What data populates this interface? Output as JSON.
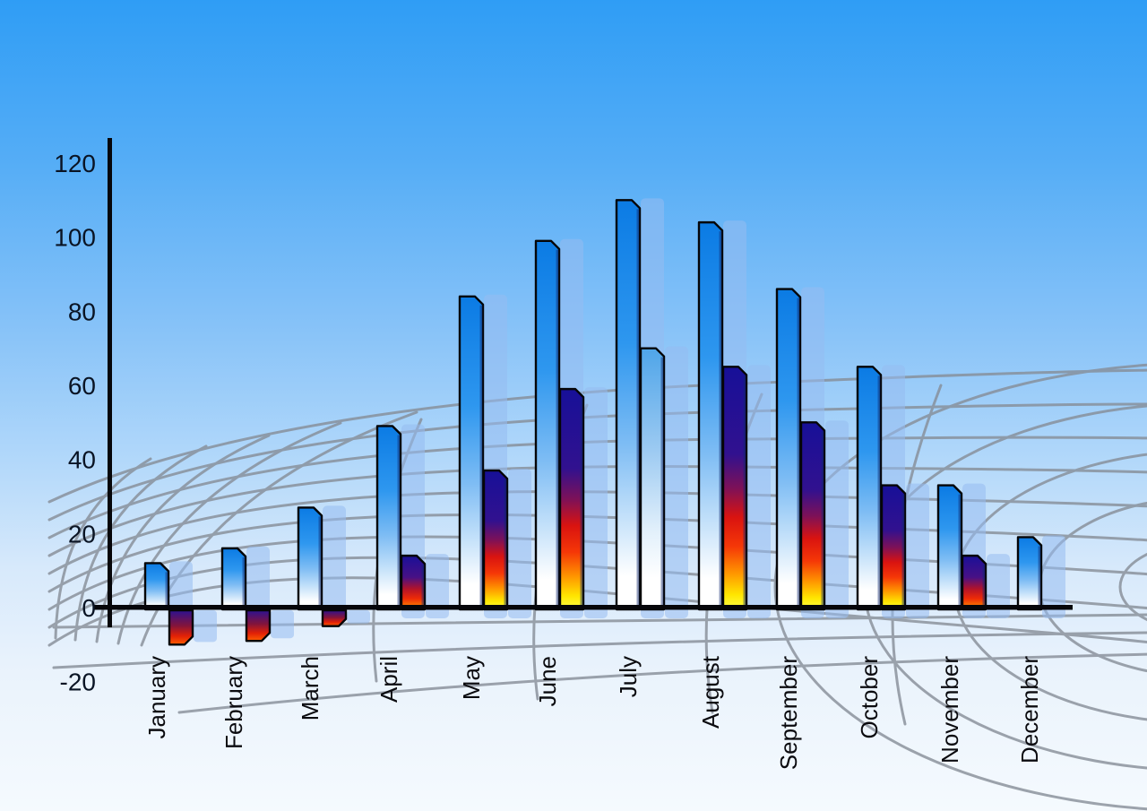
{
  "chart_data": {
    "type": "bar",
    "title": "",
    "xlabel": "",
    "ylabel": "",
    "legend": "none",
    "grid": "decorative-perspective-ground-grid",
    "ylim": [
      -20,
      120
    ],
    "y_ticks": [
      120,
      100,
      80,
      60,
      40,
      20,
      0,
      -20
    ],
    "categories": [
      "January",
      "February",
      "March",
      "April",
      "May",
      "June",
      "July",
      "August",
      "September",
      "October",
      "November",
      "December"
    ],
    "series": [
      {
        "name": "primary-blue-bars",
        "values": [
          12,
          16,
          27,
          49,
          84,
          99,
          110,
          104,
          86,
          65,
          33,
          19
        ],
        "styles": [
          "blue_bar",
          "blue_bar",
          "blue_bar",
          "blue_bar",
          "blue_bar",
          "blue_bar",
          "blue_bar",
          "blue_bar",
          "blue_bar",
          "blue_bar",
          "blue_bar",
          "blue_bar"
        ]
      },
      {
        "name": "secondary-warm-bars",
        "values": [
          -10,
          -9,
          -5,
          14,
          37,
          59,
          70,
          65,
          50,
          33,
          14,
          null
        ],
        "styles": [
          "warm_neg_bar",
          "warm_neg_bar",
          "warm_neg_bar",
          "warm_short_bar",
          "warm_bar",
          "warm_bar",
          "blue_light_bar",
          "warm_bar",
          "warm_bar",
          "warm_bar",
          "warm_short_bar",
          null
        ]
      }
    ]
  },
  "colors": {
    "axis": "#06060A",
    "tick_text": "#0A1424",
    "month_text": "#0B0B0F",
    "grid_line": "#868D97",
    "shadow": "rgba(150,188,240,0.55)",
    "bar_outline": "#050507",
    "bar_side_shade": "rgba(15,40,110,0.45)",
    "gradients": {
      "sky": [
        [
          0,
          "#2F9DF5"
        ],
        [
          0.2,
          "#55ADF6"
        ],
        [
          0.4,
          "#86C2F8"
        ],
        [
          0.56,
          "#B0D7FA"
        ],
        [
          0.7,
          "#D7E9FB"
        ],
        [
          0.83,
          "#EAF3FC"
        ],
        [
          1,
          "#F5FAFE"
        ]
      ],
      "blue_bar": [
        [
          0,
          "#0B7BE4"
        ],
        [
          0.35,
          "#2E97EF"
        ],
        [
          0.6,
          "#7FBDF4"
        ],
        [
          0.78,
          "#C6E2FA"
        ],
        [
          0.92,
          "#FFFFFF"
        ],
        [
          1,
          "#FFFFFF"
        ]
      ],
      "blue_light_bar": [
        [
          0,
          "#4FA5E9"
        ],
        [
          0.4,
          "#9ECBF2"
        ],
        [
          0.7,
          "#E2F0FB"
        ],
        [
          0.88,
          "#FFFFFF"
        ],
        [
          1,
          "#FFFFFF"
        ]
      ],
      "warm_bar": [
        [
          0,
          "#171098"
        ],
        [
          0.36,
          "#31118F"
        ],
        [
          0.5,
          "#7D1158"
        ],
        [
          0.62,
          "#D91310"
        ],
        [
          0.74,
          "#F53707"
        ],
        [
          0.85,
          "#FF9500"
        ],
        [
          0.94,
          "#FFE600"
        ],
        [
          1,
          "#FFFF45"
        ]
      ],
      "warm_short_bar": [
        [
          0,
          "#1A1098"
        ],
        [
          0.4,
          "#471186"
        ],
        [
          0.62,
          "#B3132A"
        ],
        [
          0.8,
          "#EE2B06"
        ],
        [
          1,
          "#FF9800"
        ]
      ],
      "warm_neg_bar": [
        [
          0,
          "#2B1192"
        ],
        [
          0.45,
          "#83143B"
        ],
        [
          0.75,
          "#E22106"
        ],
        [
          1,
          "#FF5F00"
        ]
      ]
    }
  }
}
